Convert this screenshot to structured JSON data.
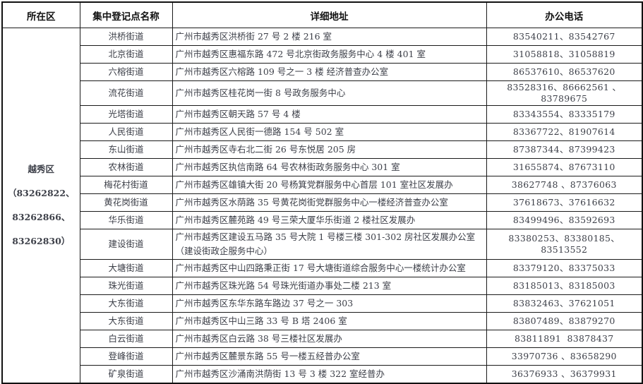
{
  "table": {
    "headers": [
      "所在区",
      "集中登记点名称",
      "详细地址",
      "办公电话"
    ],
    "district": {
      "lines": [
        "越秀区",
        "（83262822、",
        "83262866、",
        "83262830）"
      ]
    },
    "rows": [
      {
        "name": "洪桥街道",
        "address": "广州市越秀区洪桥街 27 号 2 楼 216 室",
        "phone": "83540211、83542767"
      },
      {
        "name": "北京街道",
        "address": "广州市越秀区惠福东路 472 号北京街政务服务中心 4 楼 401 室",
        "phone": "31058818、31058819"
      },
      {
        "name": "六榕街道",
        "address": "广州市越秀区六榕路 109 号之一 3 楼 经济普查办公室",
        "phone": "86537610、86537620"
      },
      {
        "name": "流花街道",
        "address": "广州市越秀区桂花岗一街 8 号政务服务中心",
        "phone": "83528316、86662561 、83789675"
      },
      {
        "name": "光塔街道",
        "address": "广州市越秀区朝天路 57 号 4 楼",
        "phone": "83343554、83335179"
      },
      {
        "name": "人民街道",
        "address": "广州市越秀区人民街一德路 154 号 502 室",
        "phone": "83367722、81907614"
      },
      {
        "name": "东山街道",
        "address": "广州市越秀区寺右北二街 26 号东悦居 205 房",
        "phone": "87387344、87399423"
      },
      {
        "name": "农林街道",
        "address": "广州市越秀区执信南路 64 号农林街政务服务中心 301 室",
        "phone": "31655874、87673110"
      },
      {
        "name": "梅花村街道",
        "address": "广州市越秀区雄镇大街 20 号杨箕党群服务中心首层 101 室社区发展办",
        "phone": "38627748 、87376063"
      },
      {
        "name": "黄花岗街道",
        "address": "广州市越秀区水荫路 35 号黄花岗街党群服务中心一楼经济普查办公室",
        "phone": "37618673、37616632"
      },
      {
        "name": "华乐街道",
        "address": "广州市越秀区麓苑路 49 号三荣大厦华乐街道 2 楼社区发展办",
        "phone": "83499496、83592693"
      },
      {
        "name": "建设街道",
        "address": "广州市越秀区建设五马路 35 号大院 1 号楼三楼 301-302 房社区发展办公室\n（建设街政企服务中心）",
        "phone": "83380253、83380185、83513552"
      },
      {
        "name": "大塘街道",
        "address": "广州市越秀区中山四路秉正街 17 号大塘街道综合服务中心一楼统计办公室",
        "phone": "83379120、83375033"
      },
      {
        "name": "珠光街道",
        "address": "广州市越秀区珠光路 54 号珠光街道办事处二楼 213 室",
        "phone": "83185013、83185003"
      },
      {
        "name": "大东街道",
        "address": "广州市越秀区东华东路车路边 37 号之一 303",
        "phone": "83832463、37621051"
      },
      {
        "name": "大东街道",
        "address": "广州市越秀区中山三路 33 号 B 塔 2406 室",
        "phone": "83807489、83879270"
      },
      {
        "name": "白云街道",
        "address": "广州市越秀区白云路 38 号三楼社区发展办",
        "phone": "83811891  83878437"
      },
      {
        "name": "登峰街道",
        "address": "广州市越秀区麓景东路 55 号一楼五经普办公室",
        "phone": "33970736 、83658290"
      },
      {
        "name": "矿泉街道",
        "address": "广州市越秀区沙涌南洪荫街 13 号 3 楼 322 室经普办",
        "phone": "36376933 、36379931"
      }
    ]
  }
}
